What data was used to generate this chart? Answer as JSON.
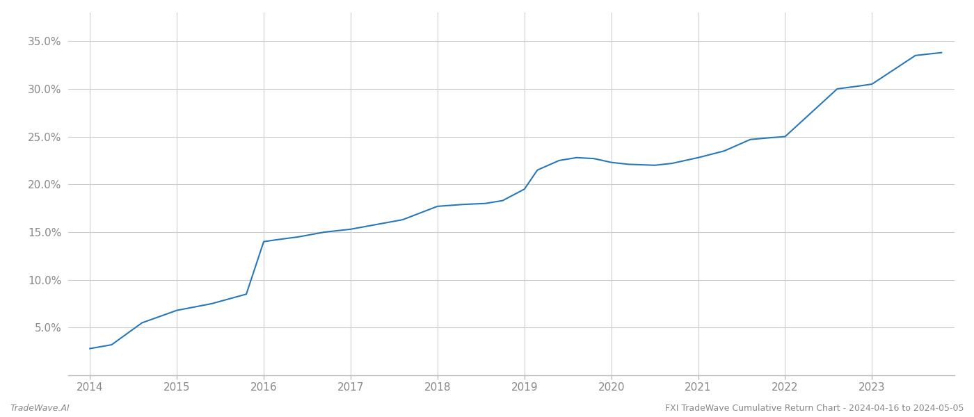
{
  "title": "FXI TradeWave Cumulative Return Chart - 2024-04-16 to 2024-05-05",
  "watermark_left": "TradeWave.AI",
  "x_years": [
    2014,
    2015,
    2016,
    2017,
    2018,
    2019,
    2020,
    2021,
    2022,
    2023
  ],
  "line_color": "#2878b8",
  "line_width": 1.5,
  "background_color": "#ffffff",
  "grid_color": "#cccccc",
  "x_data": [
    2014.0,
    2014.25,
    2014.6,
    2015.0,
    2015.4,
    2015.8,
    2016.0,
    2016.15,
    2016.4,
    2016.7,
    2017.0,
    2017.3,
    2017.6,
    2018.0,
    2018.3,
    2018.55,
    2018.75,
    2019.0,
    2019.15,
    2019.4,
    2019.6,
    2019.8,
    2020.0,
    2020.2,
    2020.5,
    2020.7,
    2021.0,
    2021.3,
    2021.6,
    2021.85,
    2022.0,
    2022.3,
    2022.6,
    2022.85,
    2023.0,
    2023.5,
    2023.8
  ],
  "y_data": [
    2.8,
    3.2,
    5.5,
    6.8,
    7.5,
    8.5,
    14.0,
    14.2,
    14.5,
    15.0,
    15.3,
    15.8,
    16.3,
    17.7,
    17.9,
    18.0,
    18.3,
    19.5,
    21.5,
    22.5,
    22.8,
    22.7,
    22.3,
    22.1,
    22.0,
    22.2,
    22.8,
    23.5,
    24.7,
    24.9,
    25.0,
    27.5,
    30.0,
    30.3,
    30.5,
    33.5,
    33.8
  ],
  "ylim": [
    0,
    38
  ],
  "xlim": [
    2013.75,
    2023.95
  ],
  "yticks": [
    5.0,
    10.0,
    15.0,
    20.0,
    25.0,
    30.0,
    35.0
  ],
  "ytick_labels": [
    "5.0%",
    "10.0%",
    "15.0%",
    "20.0%",
    "25.0%",
    "30.0%",
    "35.0%"
  ],
  "tick_label_color": "#888888",
  "tick_label_fontsize": 11,
  "footer_fontsize": 9
}
